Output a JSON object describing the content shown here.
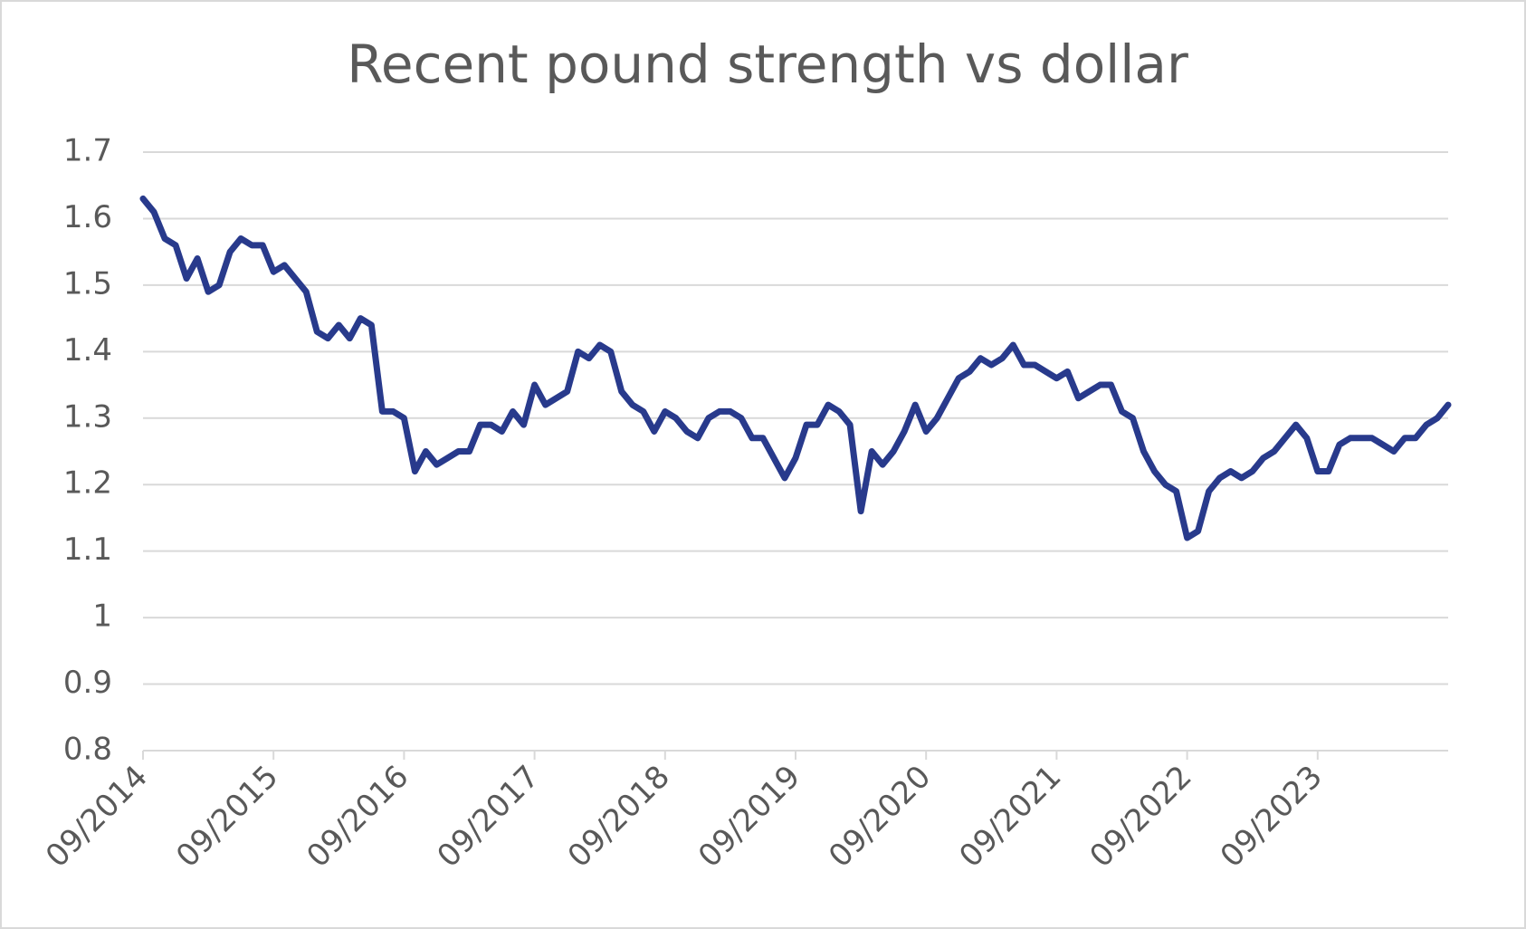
{
  "chart_data": {
    "type": "line",
    "title": "Recent pound strength vs dollar",
    "x": [
      "09/2014",
      "10/2014",
      "11/2014",
      "12/2014",
      "01/2015",
      "02/2015",
      "03/2015",
      "04/2015",
      "05/2015",
      "06/2015",
      "07/2015",
      "08/2015",
      "09/2015",
      "10/2015",
      "11/2015",
      "12/2015",
      "01/2016",
      "02/2016",
      "03/2016",
      "04/2016",
      "05/2016",
      "06/2016",
      "07/2016",
      "08/2016",
      "09/2016",
      "10/2016",
      "11/2016",
      "12/2016",
      "01/2017",
      "02/2017",
      "03/2017",
      "04/2017",
      "05/2017",
      "06/2017",
      "07/2017",
      "08/2017",
      "09/2017",
      "10/2017",
      "11/2017",
      "12/2017",
      "01/2018",
      "02/2018",
      "03/2018",
      "04/2018",
      "05/2018",
      "06/2018",
      "07/2018",
      "08/2018",
      "09/2018",
      "10/2018",
      "11/2018",
      "12/2018",
      "01/2019",
      "02/2019",
      "03/2019",
      "04/2019",
      "05/2019",
      "06/2019",
      "07/2019",
      "08/2019",
      "09/2019",
      "10/2019",
      "11/2019",
      "12/2019",
      "01/2020",
      "02/2020",
      "03/2020",
      "04/2020",
      "05/2020",
      "06/2020",
      "07/2020",
      "08/2020",
      "09/2020",
      "10/2020",
      "11/2020",
      "12/2020",
      "01/2021",
      "02/2021",
      "03/2021",
      "04/2021",
      "05/2021",
      "06/2021",
      "07/2021",
      "08/2021",
      "09/2021",
      "10/2021",
      "11/2021",
      "12/2021",
      "01/2022",
      "02/2022",
      "03/2022",
      "04/2022",
      "05/2022",
      "06/2022",
      "07/2022",
      "08/2022",
      "09/2022",
      "10/2022",
      "11/2022",
      "12/2022",
      "01/2023",
      "02/2023",
      "03/2023",
      "04/2023",
      "05/2023",
      "06/2023",
      "07/2023",
      "08/2023",
      "09/2023",
      "10/2023",
      "11/2023",
      "12/2023",
      "01/2024",
      "02/2024",
      "03/2024",
      "04/2024",
      "05/2024",
      "06/2024",
      "07/2024",
      "08/2024",
      "09/2024"
    ],
    "series": [
      {
        "color": "#283a8c",
        "values": [
          1.63,
          1.61,
          1.57,
          1.56,
          1.51,
          1.54,
          1.49,
          1.5,
          1.55,
          1.57,
          1.56,
          1.56,
          1.52,
          1.53,
          1.51,
          1.49,
          1.43,
          1.42,
          1.44,
          1.42,
          1.45,
          1.44,
          1.31,
          1.31,
          1.3,
          1.22,
          1.25,
          1.23,
          1.24,
          1.25,
          1.25,
          1.29,
          1.29,
          1.28,
          1.31,
          1.29,
          1.35,
          1.32,
          1.33,
          1.34,
          1.4,
          1.39,
          1.41,
          1.4,
          1.34,
          1.32,
          1.31,
          1.28,
          1.31,
          1.3,
          1.28,
          1.27,
          1.3,
          1.31,
          1.31,
          1.3,
          1.27,
          1.27,
          1.24,
          1.21,
          1.24,
          1.29,
          1.29,
          1.32,
          1.31,
          1.29,
          1.16,
          1.25,
          1.23,
          1.25,
          1.28,
          1.32,
          1.28,
          1.3,
          1.33,
          1.36,
          1.37,
          1.39,
          1.38,
          1.39,
          1.41,
          1.38,
          1.38,
          1.37,
          1.36,
          1.37,
          1.33,
          1.34,
          1.35,
          1.35,
          1.31,
          1.3,
          1.25,
          1.22,
          1.2,
          1.19,
          1.12,
          1.13,
          1.19,
          1.21,
          1.22,
          1.21,
          1.22,
          1.24,
          1.25,
          1.27,
          1.29,
          1.27,
          1.22,
          1.22,
          1.26,
          1.27,
          1.27,
          1.27,
          1.26,
          1.25,
          1.27,
          1.27,
          1.29,
          1.3,
          1.32
        ]
      }
    ],
    "xticks": [
      "09/2014",
      "09/2015",
      "09/2016",
      "09/2017",
      "09/2018",
      "09/2019",
      "09/2020",
      "09/2021",
      "09/2022",
      "09/2023"
    ],
    "ylim": [
      0.8,
      1.7
    ],
    "yticks": [
      0.8,
      0.9,
      1,
      1.1,
      1.2,
      1.3,
      1.4,
      1.5,
      1.6,
      1.7
    ],
    "grid": true
  }
}
